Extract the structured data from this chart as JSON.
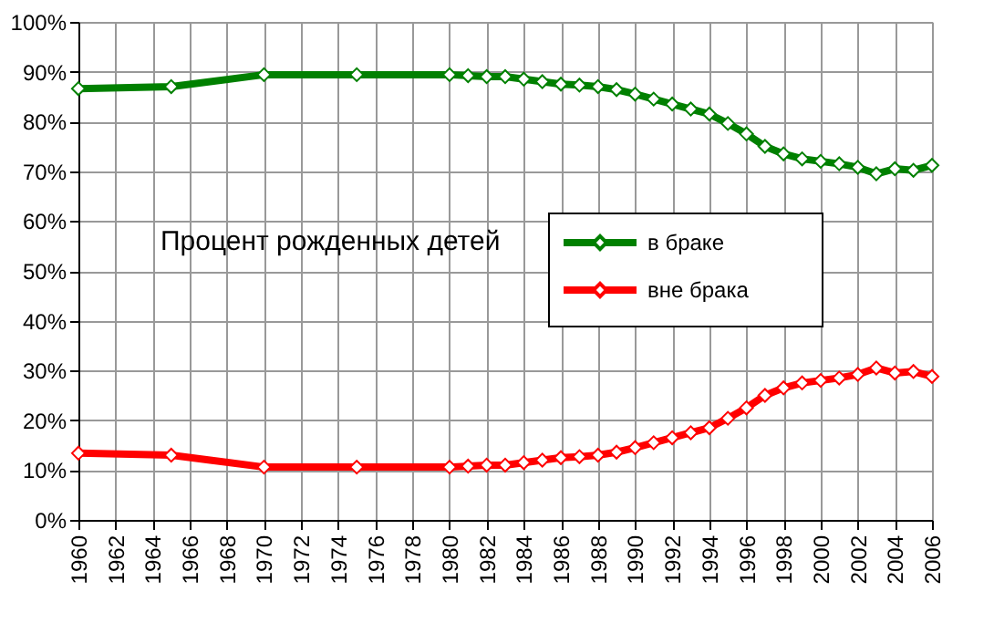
{
  "chart_data": {
    "type": "line",
    "x": [
      1960,
      1965,
      1970,
      1975,
      1980,
      1981,
      1982,
      1983,
      1984,
      1985,
      1986,
      1987,
      1988,
      1989,
      1990,
      1991,
      1992,
      1993,
      1994,
      1995,
      1996,
      1997,
      1998,
      1999,
      2000,
      2001,
      2002,
      2003,
      2004,
      2005,
      2006
    ],
    "series": [
      {
        "name": "в браке",
        "color": "#008000",
        "values": [
          86.6,
          87,
          89.4,
          89.4,
          89.4,
          89.2,
          89,
          89,
          88.5,
          88,
          87.5,
          87.3,
          87,
          86.4,
          85.5,
          84.5,
          83.5,
          82.5,
          81.5,
          79.6,
          77.5,
          75,
          73.5,
          72.5,
          72,
          71.5,
          70.8,
          69.5,
          70.5,
          70.2,
          71.2
        ]
      },
      {
        "name": "вне брака",
        "color": "#ff0000",
        "values": [
          13.4,
          13,
          10.6,
          10.6,
          10.6,
          10.8,
          11,
          11,
          11.5,
          12,
          12.5,
          12.7,
          13,
          13.6,
          14.5,
          15.5,
          16.5,
          17.5,
          18.5,
          20.4,
          22.5,
          25,
          26.5,
          27.5,
          28,
          28.5,
          29.2,
          30.5,
          29.5,
          29.8,
          28.8
        ]
      }
    ],
    "xlim": [
      1960,
      2006
    ],
    "xticks": [
      1960,
      1962,
      1964,
      1966,
      1968,
      1970,
      1972,
      1974,
      1976,
      1978,
      1980,
      1982,
      1984,
      1986,
      1988,
      1990,
      1992,
      1994,
      1996,
      1998,
      2000,
      2002,
      2004,
      2006
    ],
    "ylim": [
      0,
      100
    ],
    "yticks": [
      {
        "value": 0,
        "label": "0%"
      },
      {
        "value": 10,
        "label": "10%"
      },
      {
        "value": 20,
        "label": "20%"
      },
      {
        "value": 30,
        "label": "30%"
      },
      {
        "value": 40,
        "label": "40%"
      },
      {
        "value": 50,
        "label": "50%"
      },
      {
        "value": 60,
        "label": "60%"
      },
      {
        "value": 70,
        "label": "70%"
      },
      {
        "value": 80,
        "label": "80%"
      },
      {
        "value": 90,
        "label": "90%"
      },
      {
        "value": 100,
        "label": "100%"
      }
    ],
    "annotations": [
      "Процент рожденных детей"
    ],
    "grid": true,
    "legend": "right",
    "marker": "diamond",
    "line_style": "solid"
  }
}
